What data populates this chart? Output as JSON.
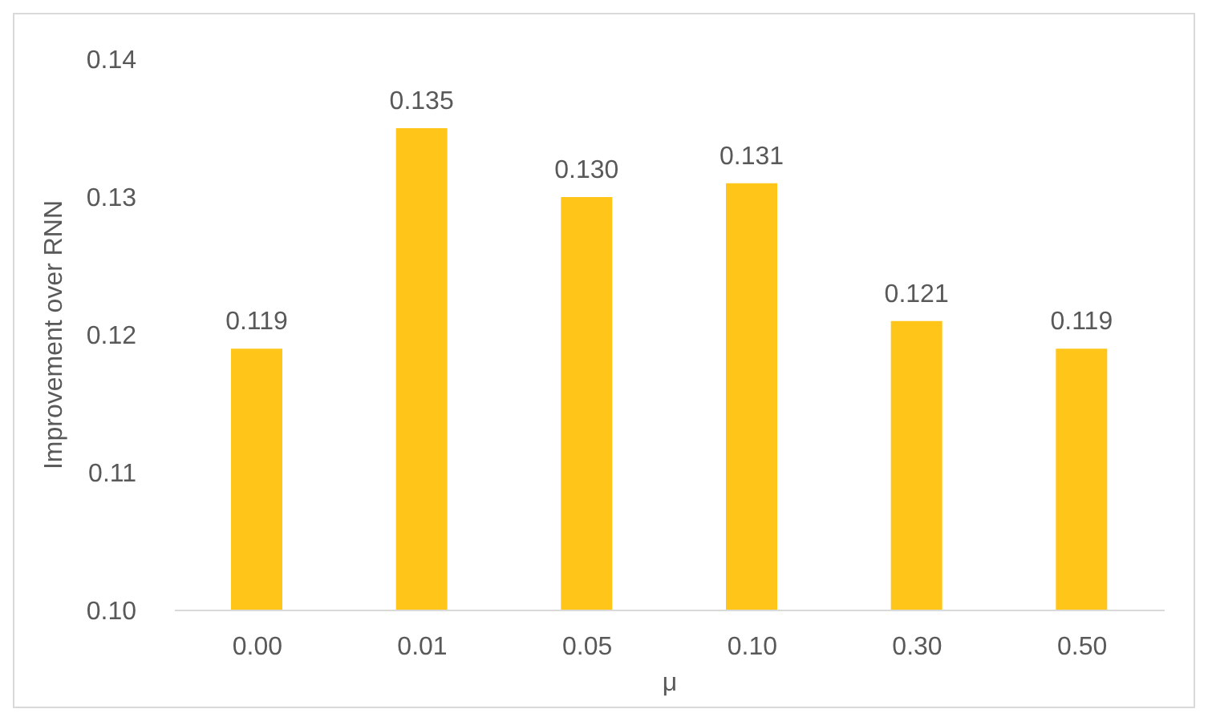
{
  "chart_data": {
    "type": "bar",
    "xlabel": "μ",
    "ylabel": "Improvement over RNN",
    "categories": [
      "0.00",
      "0.01",
      "0.05",
      "0.10",
      "0.30",
      "0.50"
    ],
    "values": [
      0.119,
      0.135,
      0.13,
      0.131,
      0.121,
      0.119
    ],
    "value_labels": [
      "0.119",
      "0.135",
      "0.130",
      "0.131",
      "0.121",
      "0.119"
    ],
    "color": "#ffc619",
    "ylim": [
      0.1,
      0.14
    ],
    "yticks": [
      {
        "value": 0.1,
        "label": "0.10"
      },
      {
        "value": 0.11,
        "label": "0.11"
      },
      {
        "value": 0.12,
        "label": "0.12"
      },
      {
        "value": 0.13,
        "label": "0.13"
      },
      {
        "value": 0.14,
        "label": "0.14"
      }
    ],
    "grid": false,
    "legend": false
  }
}
